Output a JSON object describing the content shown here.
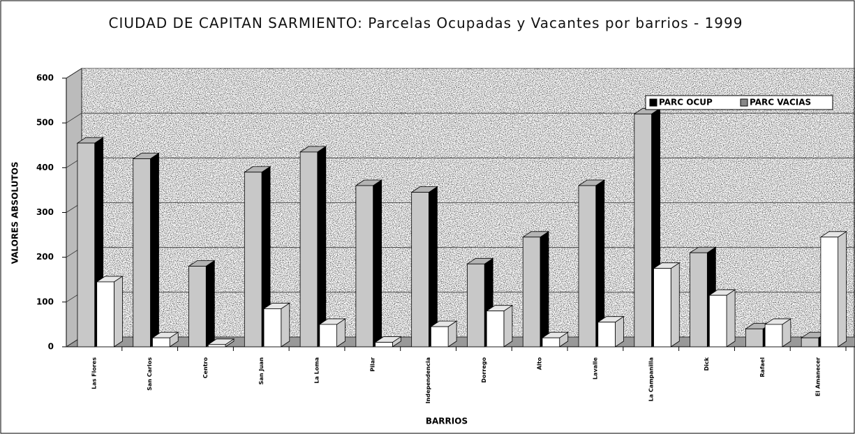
{
  "chart_data": {
    "type": "bar3d",
    "title": "CIUDAD DE CAPITAN SARMIENTO: Parcelas Ocupadas y Vacantes por barrios - 1999",
    "x_label": "BARRIOS",
    "y_label": "VALORES ABSOLUTOS",
    "categories": [
      "Las Flores",
      "San Carlos",
      "Centro",
      "San Juan",
      "La Loma",
      "Pilar",
      "Independencia",
      "Dorrego",
      "Alto",
      "Lavalle",
      "La Campanilla",
      "Dick",
      "Rafael",
      "El Amanecer"
    ],
    "series": [
      {
        "name": "PARC OCUP",
        "color": "#c8c8c8",
        "values": [
          455,
          420,
          180,
          390,
          435,
          360,
          345,
          185,
          245,
          360,
          520,
          210,
          40,
          20
        ]
      },
      {
        "name": "PARC VACIAS",
        "color": "#ffffff",
        "values": [
          145,
          20,
          5,
          85,
          50,
          10,
          45,
          80,
          20,
          55,
          175,
          115,
          50,
          245
        ]
      }
    ],
    "ylim": [
      0,
      600
    ],
    "yticks": [
      0,
      100,
      200,
      300,
      400,
      500,
      600
    ],
    "grid": true,
    "legend": "top-right"
  }
}
